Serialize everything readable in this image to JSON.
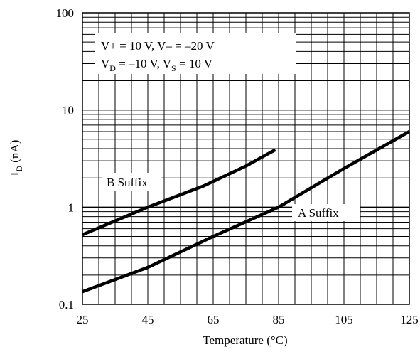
{
  "chart_data": {
    "type": "line",
    "xlabel": "Temperature (°C)",
    "ylabel": "I",
    "ylabel_sub": "D",
    "ylabel_unit": " (nA)",
    "y_scale": "log",
    "xlim": [
      25,
      125
    ],
    "ylim": [
      0.1,
      100
    ],
    "grid": true,
    "x_ticks": [
      "25",
      "45",
      "65",
      "85",
      "105",
      "125"
    ],
    "y_ticks": [
      "100",
      "10",
      "1",
      "0.1"
    ],
    "conditions": {
      "line1": "V+ = 10 V, V– = –20 V",
      "line2_p1": "V",
      "line2_sub1": "D",
      "line2_p2": " = –10 V, V",
      "line2_sub2": "S",
      "line2_p3": " = 10 V"
    },
    "series": [
      {
        "name": "B Suffix",
        "color": "#000000",
        "points": [
          [
            25,
            0.52
          ],
          [
            45,
            1.0
          ],
          [
            62,
            1.65
          ],
          [
            75,
            2.65
          ],
          [
            84,
            3.9
          ]
        ]
      },
      {
        "name": "A Suffix",
        "color": "#000000",
        "points": [
          [
            25,
            0.135
          ],
          [
            45,
            0.24
          ],
          [
            65,
            0.5
          ],
          [
            85,
            1.0
          ],
          [
            105,
            2.5
          ],
          [
            125,
            6.0
          ]
        ]
      }
    ]
  }
}
